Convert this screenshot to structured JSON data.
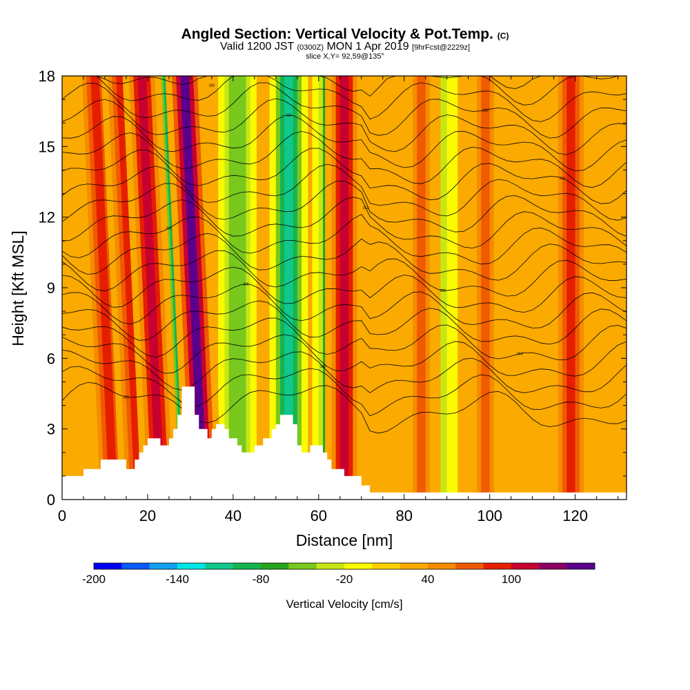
{
  "title": {
    "main": "Angled Section: Vertical Velocity & Pot.Temp.",
    "copyright": "(C)",
    "valid_prefix": "Valid 1200 JST",
    "valid_zulu": "(0300Z)",
    "valid_date": "MON 1 Apr 2019",
    "forecast": "[9hrFcst@2229z]",
    "slice": "slice X,Y= 92,59@135°"
  },
  "chart_data": {
    "type": "heatmap",
    "xlabel": "Distance [nm]",
    "ylabel": "Height [Kft MSL]",
    "xlim": [
      0,
      132
    ],
    "ylim": [
      0,
      18
    ],
    "x_ticks": [
      0,
      20,
      40,
      60,
      80,
      100,
      120
    ],
    "y_ticks": [
      0,
      3,
      6,
      9,
      12,
      15,
      18
    ],
    "colorbar": {
      "label": "Vertical Velocity [cm/s]",
      "levels": [
        -200,
        -180,
        -160,
        -140,
        -120,
        -100,
        -80,
        -60,
        -40,
        -20,
        0,
        20,
        40,
        60,
        80,
        100,
        120,
        140
      ],
      "tick_labels": [
        -200,
        -140,
        -80,
        -20,
        40,
        100
      ],
      "colors": [
        "#0000f0",
        "#0a5af5",
        "#10a0f0",
        "#00e6e6",
        "#10c88c",
        "#15b450",
        "#28a51e",
        "#78c81e",
        "#c8e614",
        "#fafa00",
        "#fad200",
        "#faaa00",
        "#f58c00",
        "#f05a00",
        "#e61e00",
        "#c80032",
        "#8c0064",
        "#5a008c"
      ]
    },
    "terrain_kft": [
      [
        0,
        1
      ],
      [
        5,
        1
      ],
      [
        5,
        1.3
      ],
      [
        9,
        1.3
      ],
      [
        9,
        1.7
      ],
      [
        15,
        1.7
      ],
      [
        15,
        1.3
      ],
      [
        17,
        1.3
      ],
      [
        17,
        1.7
      ],
      [
        18,
        1.7
      ],
      [
        18,
        2
      ],
      [
        19,
        2
      ],
      [
        19,
        2.3
      ],
      [
        20,
        2.3
      ],
      [
        20,
        2.6
      ],
      [
        23,
        2.6
      ],
      [
        23,
        2.3
      ],
      [
        25,
        2.3
      ],
      [
        25,
        2.6
      ],
      [
        26,
        2.6
      ],
      [
        26,
        3
      ],
      [
        27,
        3
      ],
      [
        27,
        3.6
      ],
      [
        28,
        3.6
      ],
      [
        28,
        4.8
      ],
      [
        31,
        4.8
      ],
      [
        31,
        3.6
      ],
      [
        32,
        3.6
      ],
      [
        32,
        3
      ],
      [
        34,
        3
      ],
      [
        34,
        2.6
      ],
      [
        35,
        2.6
      ],
      [
        35,
        3
      ],
      [
        36,
        3
      ],
      [
        36,
        3.2
      ],
      [
        38,
        3.2
      ],
      [
        38,
        3
      ],
      [
        39,
        3
      ],
      [
        39,
        2.6
      ],
      [
        41,
        2.6
      ],
      [
        41,
        2.3
      ],
      [
        42,
        2.3
      ],
      [
        42,
        2
      ],
      [
        45,
        2
      ],
      [
        45,
        2.3
      ],
      [
        47,
        2.3
      ],
      [
        47,
        2.6
      ],
      [
        49,
        2.6
      ],
      [
        49,
        3
      ],
      [
        50,
        3
      ],
      [
        50,
        3.2
      ],
      [
        51,
        3.2
      ],
      [
        51,
        3.6
      ],
      [
        54,
        3.6
      ],
      [
        54,
        3.2
      ],
      [
        55,
        3.2
      ],
      [
        55,
        2.3
      ],
      [
        56,
        2.3
      ],
      [
        56,
        2
      ],
      [
        58,
        2
      ],
      [
        58,
        2.3
      ],
      [
        61,
        2.3
      ],
      [
        61,
        2
      ],
      [
        62,
        2
      ],
      [
        62,
        1.7
      ],
      [
        63,
        1.7
      ],
      [
        63,
        1.3
      ],
      [
        66,
        1.3
      ],
      [
        66,
        1
      ],
      [
        70,
        1
      ],
      [
        70,
        0.6
      ],
      [
        72,
        0.6
      ],
      [
        72,
        0.3
      ],
      [
        132,
        0.3
      ]
    ],
    "theta_contour_labels": [
      "300",
      "302",
      "304",
      "306",
      "308",
      "310",
      "312",
      "314",
      "316",
      "318",
      "320",
      "322"
    ],
    "field_note": "vertical velocity bands (cm/s), contours of potential temperature (K)",
    "updraft_bands": [
      {
        "x": 12,
        "value": 80
      },
      {
        "x": 18,
        "value": 90
      },
      {
        "x": 23,
        "value": 110
      },
      {
        "x": 33,
        "value": 140
      },
      {
        "x": 66,
        "value": 100
      },
      {
        "x": 84,
        "value": 70
      },
      {
        "x": 99,
        "value": 60
      },
      {
        "x": 119,
        "value": 90
      }
    ],
    "downdraft_bands": [
      {
        "x": 27,
        "value": -160
      },
      {
        "x": 30,
        "value": -120
      },
      {
        "x": 41,
        "value": -60
      },
      {
        "x": 53,
        "value": -120
      },
      {
        "x": 63,
        "value": -80
      },
      {
        "x": 88,
        "value": -40
      }
    ]
  }
}
